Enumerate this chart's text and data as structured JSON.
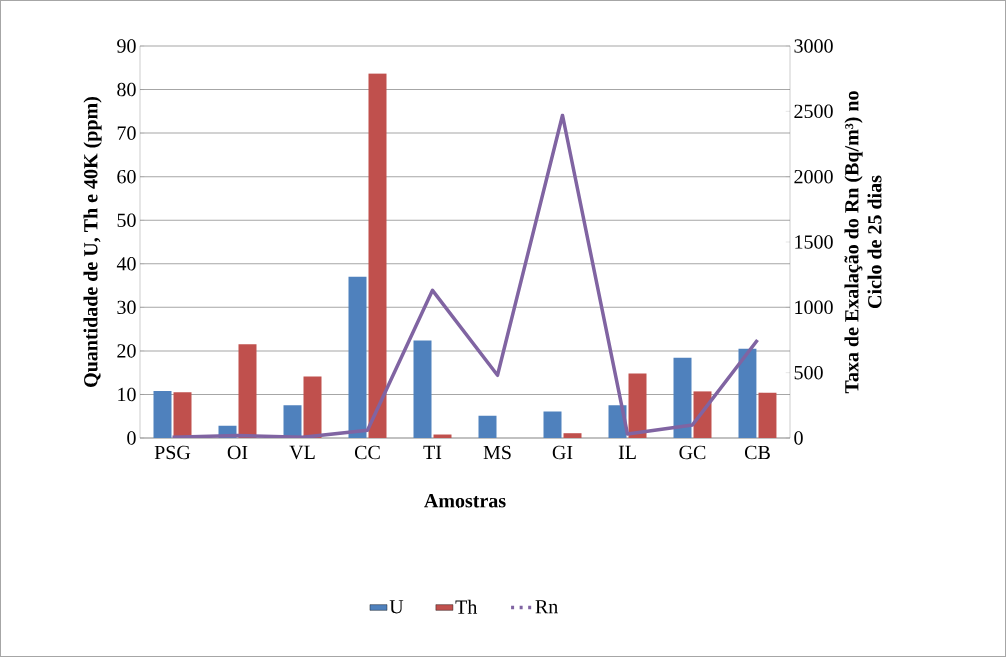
{
  "chart_data": {
    "type": "bar",
    "xlabel": "Amostras",
    "ylabel": "Quantidade de U, Th e 40K (ppm)",
    "y2label": "Taxa de Exalação do Rn (Bq/m³) no Ciclo de 25 dias",
    "categories": [
      "PSG",
      "OI",
      "VL",
      "CC",
      "TI",
      "MS",
      "GI",
      "IL",
      "GC",
      "CB"
    ],
    "series": [
      {
        "name": "U",
        "type": "bar",
        "color": "#4f81bd",
        "values": [
          10.8,
          2.8,
          7.5,
          37,
          22.4,
          5.1,
          6.1,
          7.5,
          18.4,
          20.5
        ]
      },
      {
        "name": "Th",
        "type": "bar",
        "color": "#c0504d",
        "values": [
          10.5,
          21.5,
          14.1,
          83.7,
          0.8,
          0,
          1.1,
          14.8,
          10.7,
          10.4
        ]
      },
      {
        "name": "Rn",
        "type": "line",
        "axis": "y2",
        "color": "#8064a2",
        "marker": "none",
        "line_style": "solid",
        "values": [
          5,
          20,
          5,
          60,
          1130,
          480,
          2470,
          30,
          100,
          750
        ]
      }
    ],
    "ylim": [
      0,
      90
    ],
    "yticks": [
      0,
      10,
      20,
      30,
      40,
      50,
      60,
      70,
      80,
      90
    ],
    "y2lim": [
      0,
      3000
    ],
    "y2ticks": [
      0,
      500,
      1000,
      1500,
      2000,
      2500,
      3000
    ],
    "grid": "y",
    "legend": "bottom"
  }
}
